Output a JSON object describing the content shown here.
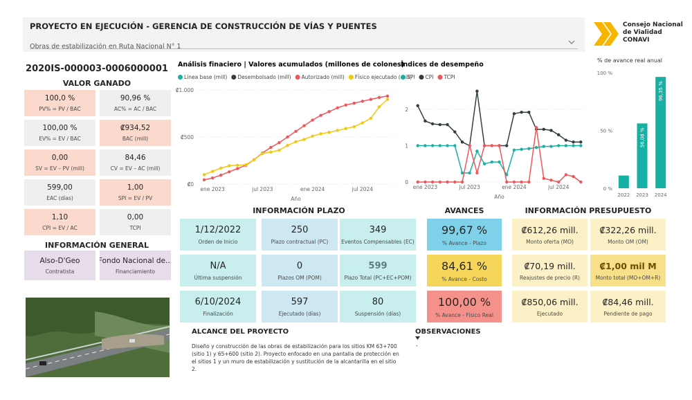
{
  "header": {
    "title": "PROYECTO EN EJECUCIÓN - GERENCIA DE CONSTRUCCIÓN DE VÍAS Y PUENTES",
    "dropdown": "Obras de estabilización en Ruta Nacional N° 1"
  },
  "logo": {
    "lines": [
      "Consejo Nacional",
      "de Vialidad",
      "CONAVI"
    ]
  },
  "project_code": "2020IS-000003-0006000001",
  "valor_ganado": {
    "title": "VALOR GANADO",
    "cards": [
      {
        "value": "100,0 %",
        "label": "PV% = PV / BAC",
        "color": "#fbd9cc"
      },
      {
        "value": "90,96 %",
        "label": "AC% = AC / BAC",
        "color": "#efefef"
      },
      {
        "value": "100,00 %",
        "label": "EV% = EV / BAC",
        "color": "#efefef"
      },
      {
        "value": "₡934,52",
        "label": "BAC (mill)",
        "color": "#fbd9cc"
      },
      {
        "value": "0,00",
        "label": "SV = EV – PV (mill)",
        "color": "#fbd9cc"
      },
      {
        "value": "84,46",
        "label": "CV = EV – AC (mill)",
        "color": "#efefef"
      },
      {
        "value": "599,00",
        "label": "EAC (días)",
        "color": "#efefef"
      },
      {
        "value": "1,00",
        "label": "SPI = EV / PV",
        "color": "#fbd9cc"
      },
      {
        "value": "1,10",
        "label": "CPI = EV / AC",
        "color": "#fbd9cc"
      },
      {
        "value": "0,00",
        "label": "TCPI",
        "color": "#efefef"
      }
    ]
  },
  "info_general": {
    "title": "INFORMACIÓN GENERAL",
    "cards": [
      {
        "value": "Also-D'Geo",
        "label": "Contratista",
        "color": "#e7dce9"
      },
      {
        "value": "Fondo Nacional de...",
        "label": "Financiamiento",
        "color": "#e7dce9"
      }
    ]
  },
  "plazo": {
    "title": "INFORMACIÓN PLAZO",
    "cards": [
      {
        "value": "1/12/2022",
        "label": "Orden de Inicio",
        "color": "#c8eeee"
      },
      {
        "value": "250",
        "label": "Plazo contractual (PC)",
        "color": "#cde8f3"
      },
      {
        "value": "349",
        "label": "Eventos Compensables (EC)",
        "color": "#c8eeee"
      },
      {
        "value": "N/A",
        "label": "Última suspensión",
        "color": "#c8eeee"
      },
      {
        "value": "0",
        "label": "Plazos OM (POM)",
        "color": "#cde8f3"
      },
      {
        "value": "599",
        "label": "Plazo Total (PC+EC+POM)",
        "color": "#c8eeee",
        "text_color": "#5b7f85"
      },
      {
        "value": "6/10/2024",
        "label": "Finalización",
        "color": "#c8eeee"
      },
      {
        "value": "597",
        "label": "Ejecutado (días)",
        "color": "#cde8f3"
      },
      {
        "value": "80",
        "label": "Suspensión (días)",
        "color": "#c8eeee"
      }
    ]
  },
  "avances": {
    "title": "AVANCES",
    "cards": [
      {
        "value": "99,67 %",
        "label": "% Avance - Plazo",
        "color": "#7fd1ea"
      },
      {
        "value": "84,61 %",
        "label": "% Avance - Costo",
        "color": "#f6d65a"
      },
      {
        "value": "100,00 %",
        "label": "% Avance - Físico Real",
        "color": "#f5918b"
      }
    ]
  },
  "presupuesto": {
    "title": "INFORMACIÓN PRESUPUESTO",
    "cards": [
      {
        "value": "₡612,26 mill.",
        "label": "Monto oferta (MO)",
        "color": "#fcf1c6"
      },
      {
        "value": "₡322,26 mill.",
        "label": "Monto OM (OM)",
        "color": "#fcf1c6"
      },
      {
        "value": "₡70,19 mill.",
        "label": "Reajustes de precio (R)",
        "color": "#fcf1c6"
      },
      {
        "value": "₡1,00 mil M",
        "label": "Monto total (MO+OM+R)",
        "color": "#f8e08a",
        "text_color": "#6b4d00"
      },
      {
        "value": "₡850,06 mill.",
        "label": "Ejecutado",
        "color": "#fcf1c6"
      },
      {
        "value": "₡84,46 mill.",
        "label": "Pendiente de pago",
        "color": "#fcf1c6"
      }
    ]
  },
  "alcance": {
    "title": "ALCANCE DEL PROYECTO",
    "text": "Diseño y construcción de las obras de estabilización para los sitios KM 63+700 (sitio 1) y 65+600 (sitio 2). Proyecto enfocado en una pantalla de protección en el sitios 1 y un muro de estabilización y sustitución de la alcantarilla en el sitio 2."
  },
  "observaciones": {
    "title": "OBSERVACIONES",
    "text": "-"
  },
  "chart_data": [
    {
      "type": "line",
      "title": "Análisis finaciero | Valores acumulados (millones de colones)",
      "x_label": "Año",
      "x": [
        "2022-12",
        "2023-01",
        "2023-02",
        "2023-03",
        "2023-04",
        "2023-05",
        "2023-06",
        "2023-07",
        "2023-08",
        "2023-09",
        "2023-10",
        "2023-11",
        "2023-12",
        "2024-01",
        "2024-02",
        "2024-03",
        "2024-04",
        "2024-05",
        "2024-06",
        "2024-07",
        "2024-08",
        "2024-09",
        "2024-10"
      ],
      "xlim": [
        "2022-11",
        "2024-11"
      ],
      "xticks": [
        {
          "value": "2023-01",
          "label": "ene 2023"
        },
        {
          "value": "2023-07",
          "label": "jul 2023"
        },
        {
          "value": "2024-01",
          "label": "ene 2024"
        },
        {
          "value": "2024-07",
          "label": "jul 2024"
        }
      ],
      "ylim": [
        0,
        1000
      ],
      "yticks": [
        {
          "value": 0,
          "label": "₡0"
        },
        {
          "value": 500,
          "label": "₡500"
        },
        {
          "value": 1000,
          "label": "₡1.000"
        }
      ],
      "grid": true,
      "series": [
        {
          "name": "Línea base (mill)",
          "color": "#17b0a4"
        },
        {
          "name": "Desembolsado (mill)",
          "color": "#333d40"
        },
        {
          "name": "Autorizado (mill)",
          "color": "#f0555a",
          "values": [
            45,
            65,
            95,
            130,
            165,
            200,
            260,
            330,
            390,
            440,
            500,
            560,
            620,
            680,
            730,
            770,
            810,
            840,
            860,
            880,
            900,
            920,
            935
          ]
        },
        {
          "name": "Físico ejecutado (mill)",
          "color": "#f2c811",
          "values": [
            100,
            135,
            170,
            195,
            200,
            205,
            260,
            325,
            340,
            360,
            410,
            450,
            475,
            510,
            535,
            550,
            570,
            590,
            610,
            650,
            700,
            820,
            900
          ]
        }
      ]
    },
    {
      "type": "line",
      "title": "Índices de desempeño",
      "x": [
        "2022-12",
        "2023-01",
        "2023-02",
        "2023-03",
        "2023-04",
        "2023-05",
        "2023-06",
        "2023-07",
        "2023-08",
        "2023-09",
        "2023-10",
        "2023-11",
        "2023-12",
        "2024-01",
        "2024-02",
        "2024-03",
        "2024-04",
        "2024-05",
        "2024-06",
        "2024-07",
        "2024-08",
        "2024-09",
        "2024-10"
      ],
      "xlim": [
        "2022-11",
        "2024-11"
      ],
      "x_label": "Año",
      "xticks": [
        {
          "value": "2023-01",
          "label": "ene 2023"
        },
        {
          "value": "2023-07",
          "label": "jul 2023"
        },
        {
          "value": "2024-01",
          "label": "ene 2024"
        },
        {
          "value": "2024-07",
          "label": "jul 2024"
        }
      ],
      "ylim": [
        0,
        2.5
      ],
      "yticks": [
        0,
        1,
        2
      ],
      "grid": true,
      "series": [
        {
          "name": "SPI",
          "color": "#17b0a4",
          "values": [
            1,
            1,
            1,
            1,
            1,
            1,
            0.25,
            0.25,
            0.85,
            0.5,
            0.55,
            0.55,
            0.2,
            0.88,
            0.9,
            0.92,
            0.95,
            0.98,
            0.98,
            1,
            1,
            1,
            1
          ]
        },
        {
          "name": "CPI",
          "color": "#333d40",
          "values": [
            2.1,
            1.68,
            1.6,
            1.58,
            1.58,
            1.38,
            1.1,
            1,
            2.5,
            1,
            1,
            1,
            1,
            1.88,
            1.92,
            1.92,
            1.45,
            1.45,
            1.42,
            1.3,
            1.15,
            1.1,
            1.1
          ]
        },
        {
          "name": "TCPI",
          "color": "#f0555a",
          "values": [
            0,
            0,
            0,
            0,
            0,
            0,
            0,
            1,
            0.25,
            1,
            1,
            1,
            0,
            0,
            0,
            0,
            1.5,
            0.1,
            0.05,
            0,
            0.2,
            0.15,
            0
          ]
        }
      ]
    },
    {
      "type": "bar",
      "title": "% de avance real anual",
      "categories": [
        "2022",
        "2023",
        "2024"
      ],
      "values": [
        11,
        56.08,
        96.35
      ],
      "value_labels": [
        null,
        "56,08 %",
        "96,35 %"
      ],
      "color": "#17b0a4",
      "ylim": [
        0,
        100
      ],
      "yticks": [
        {
          "value": 0,
          "label": "0 %"
        },
        {
          "value": 50,
          "label": "50 %"
        },
        {
          "value": 100,
          "label": "100 %"
        }
      ]
    }
  ]
}
